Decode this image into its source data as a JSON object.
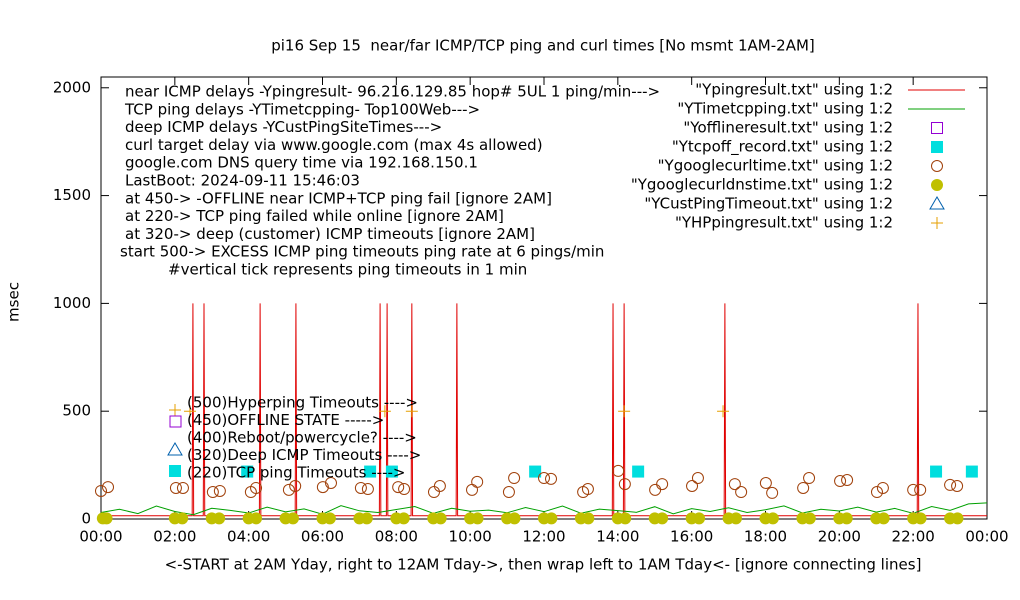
{
  "chart_data": {
    "type": "line",
    "title": "pi16 Sep 15  near/far ICMP/TCP ping and curl times [No msmt 1AM-2AM]",
    "x_label": "<-START at 2AM Yday, right to 12AM Tday->, then wrap left to 1AM Tday<- [ignore connecting lines]",
    "y_label": "msec",
    "xlim": [
      0,
      24
    ],
    "xticks": [
      {
        "value": 0,
        "label": "00:00"
      },
      {
        "value": 2,
        "label": "02:00"
      },
      {
        "value": 4,
        "label": "04:00"
      },
      {
        "value": 6,
        "label": "06:00"
      },
      {
        "value": 8,
        "label": "08:00"
      },
      {
        "value": 10,
        "label": "10:00"
      },
      {
        "value": 12,
        "label": "12:00"
      },
      {
        "value": 14,
        "label": "14:00"
      },
      {
        "value": 16,
        "label": "16:00"
      },
      {
        "value": 18,
        "label": "18:00"
      },
      {
        "value": 20,
        "label": "20:00"
      },
      {
        "value": 22,
        "label": "22:00"
      },
      {
        "value": 24,
        "label": "00:00"
      }
    ],
    "ylim": [
      0,
      2050
    ],
    "yticks": [
      0,
      500,
      1000,
      1500,
      2000
    ],
    "grid": false,
    "legend_position": "top-right",
    "annotations": [
      "near ICMP delays -Ypingresult- 96.216.129.85 hop# 5UL 1 ping/min--->",
      "TCP ping delays -YTimetcpping- Top100Web--->",
      "deep ICMP delays -YCustPingSiteTimes--->",
      "curl target delay via www.google.com (max 4s allowed)",
      "google.com DNS query time via 192.168.150.1",
      "LastBoot: 2024-09-11 15:46:03",
      "at 450-> -OFFLINE near ICMP+TCP ping fail [ignore 2AM]",
      "at 220-> TCP ping failed while online [ignore 2AM]",
      "at 320-> deep (customer) ICMP timeouts [ignore 2AM]",
      "start 500-> EXCESS ICMP ping timeouts ping rate at 6 pings/min",
      "#vertical tick represents ping timeouts in 1 min"
    ],
    "key_labels": [
      "(500)Hyperping Timeouts ---->",
      "(450)OFFLINE STATE ----->",
      "(400)Reboot/powercycle? ---->",
      "(320)Deep ICMP Timeouts ---->",
      "(220)TCP ping Timeouts ---->"
    ],
    "series": [
      {
        "name": "\"Ypingresult.txt\" using 1:2",
        "color": "#e00000",
        "style": "line",
        "x": [
          0,
          2.47,
          2.49,
          2.51,
          2.77,
          2.79,
          2.81,
          4.29,
          4.31,
          4.33,
          5.26,
          5.28,
          5.3,
          7.54,
          7.56,
          7.58,
          7.73,
          7.75,
          7.77,
          8.4,
          8.42,
          8.44,
          9.62,
          9.64,
          9.66,
          13.85,
          13.87,
          13.89,
          14.15,
          14.17,
          14.19,
          16.88,
          16.9,
          16.92,
          22.11,
          22.13,
          22.15,
          24
        ],
        "values": [
          15,
          15,
          1000,
          15,
          15,
          1000,
          15,
          15,
          1000,
          15,
          15,
          1000,
          15,
          15,
          1000,
          15,
          15,
          1000,
          15,
          15,
          1000,
          15,
          15,
          1000,
          15,
          15,
          1000,
          15,
          15,
          1000,
          15,
          15,
          1000,
          15,
          15,
          1000,
          15,
          15
        ]
      },
      {
        "name": "\"YTimetcpping.txt\" using 1:2",
        "color": "#00a000",
        "style": "line",
        "x": [
          0,
          0.5,
          1,
          1.5,
          2,
          2.5,
          3,
          3.5,
          4,
          4.5,
          5,
          5.5,
          6,
          6.5,
          7,
          7.5,
          8,
          8.5,
          9,
          9.5,
          10,
          10.5,
          11,
          11.5,
          12,
          12.5,
          13,
          13.5,
          14,
          14.5,
          15,
          15.5,
          16,
          16.5,
          17,
          17.5,
          18,
          18.5,
          19,
          19.5,
          20,
          20.5,
          21,
          21.5,
          22,
          22.5,
          23,
          23.5,
          24
        ],
        "values": [
          30,
          45,
          25,
          60,
          35,
          20,
          50,
          40,
          28,
          55,
          33,
          47,
          22,
          62,
          38,
          30,
          44,
          58,
          26,
          50,
          36,
          41,
          29,
          53,
          34,
          60,
          27,
          46,
          39,
          31,
          57,
          24,
          48,
          35,
          52,
          30,
          43,
          61,
          28,
          45,
          37,
          55,
          32,
          49,
          26,
          58,
          40,
          70,
          75
        ]
      },
      {
        "name": "\"Yofflineresult.txt\" using 1:2",
        "color": "#9400d3",
        "style": "square-open",
        "x": [],
        "values": []
      },
      {
        "name": "\"Ytcpoff_record.txt\" using 1:2",
        "color": "#00dede",
        "style": "square",
        "x": [
          3.96,
          7.29,
          7.88,
          11.76,
          14.55,
          22.62,
          23.59
        ],
        "values": [
          220,
          220,
          220,
          220,
          220,
          220,
          220
        ]
      },
      {
        "name": "\"Ygooglecurltime.txt\" using 1:2",
        "color": "#a0400a",
        "style": "circle-open",
        "x": [
          0,
          0.19,
          2.03,
          2.22,
          3.03,
          3.22,
          4.06,
          4.2,
          5.09,
          5.26,
          6.01,
          6.23,
          7.04,
          7.23,
          8.05,
          8.21,
          9.02,
          9.18,
          10.05,
          10.19,
          11.05,
          11.19,
          12,
          12.19,
          13.06,
          13.19,
          14.01,
          14.19,
          15.01,
          15.2,
          16.01,
          16.17,
          17.17,
          17.34,
          18.01,
          18.18,
          19.02,
          19.18,
          20.02,
          20.21,
          21.02,
          21.18,
          22,
          22.19,
          23,
          23.19
        ],
        "values": [
          130,
          148,
          144,
          144,
          125,
          130,
          125,
          144,
          135,
          153,
          148,
          167,
          144,
          139,
          148,
          139,
          125,
          153,
          135,
          172,
          125,
          190,
          190,
          186,
          125,
          139,
          223,
          162,
          135,
          162,
          153,
          190,
          162,
          125,
          167,
          121,
          144,
          190,
          176,
          181,
          125,
          144,
          135,
          135,
          158,
          153
        ]
      },
      {
        "name": "\"Ygooglecurldnstime.txt\" using 1:2",
        "color": "#c0c000",
        "style": "circle",
        "x": [
          0.05,
          0.15,
          2,
          2.2,
          3,
          3.2,
          4,
          4.2,
          5,
          5.2,
          6,
          6.2,
          7,
          7.2,
          8,
          8.2,
          9,
          9.2,
          10,
          10.2,
          11,
          11.2,
          12,
          12.2,
          13,
          13.2,
          14,
          14.2,
          15,
          15.2,
          16,
          16.2,
          17,
          17.2,
          18,
          18.2,
          19,
          19.2,
          20,
          20.2,
          21,
          21.2,
          22,
          22.2,
          23,
          23.2
        ],
        "values": [
          3,
          3,
          3,
          3,
          3,
          3,
          3,
          3,
          3,
          3,
          3,
          3,
          3,
          3,
          3,
          3,
          3,
          3,
          3,
          3,
          3,
          3,
          3,
          3,
          3,
          3,
          3,
          3,
          3,
          3,
          3,
          3,
          3,
          3,
          3,
          3,
          3,
          3,
          3,
          3,
          3,
          3,
          3,
          3,
          3,
          3
        ]
      },
      {
        "name": "\"YCustPingTimeout.txt\" using 1:2",
        "color": "#0060ad",
        "style": "triangle-open",
        "x": [],
        "values": []
      },
      {
        "name": "\"YHPpingresult.txt\" using 1:2",
        "color": "#e69f00",
        "style": "plus",
        "x": [
          2.41,
          7.69,
          8.42,
          14.17,
          16.85
        ],
        "values": [
          500,
          500,
          500,
          500,
          500
        ]
      }
    ]
  }
}
